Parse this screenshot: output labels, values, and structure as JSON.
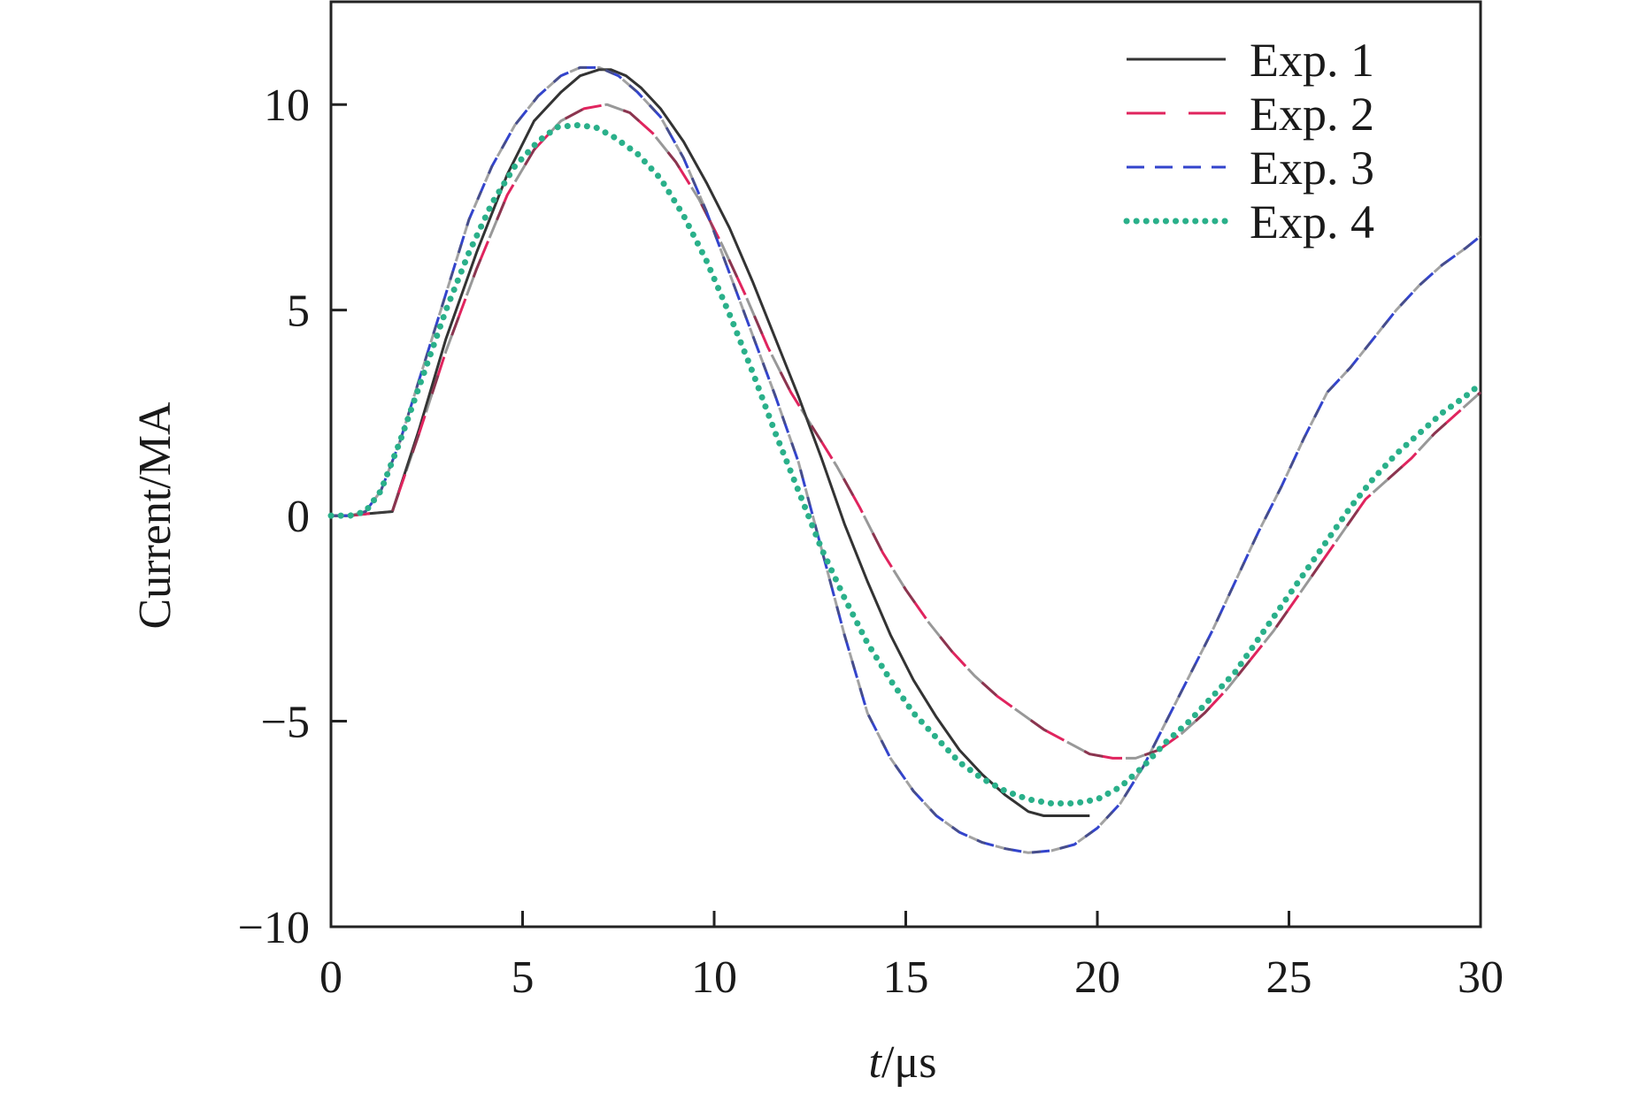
{
  "chart_data": {
    "type": "line",
    "title": "",
    "xlabel_italic": "t",
    "xlabel_unit": "/μs",
    "ylabel": "Current/MA",
    "xlim": [
      0,
      30
    ],
    "ylim": [
      -10,
      12.5
    ],
    "xticks": [
      0,
      5,
      10,
      15,
      20,
      25,
      30
    ],
    "yticks": [
      -10,
      -5,
      0,
      5,
      10
    ],
    "xtick_labels": [
      "0",
      "5",
      "10",
      "15",
      "20",
      "25",
      "30"
    ],
    "ytick_labels": [
      "−10",
      "−5",
      "0",
      "5",
      "10"
    ],
    "grid": false,
    "legend_position": "top-right",
    "series": [
      {
        "name": "Exp. 1",
        "style": "solid",
        "colors": [
          "#333333"
        ],
        "x": [
          0,
          0.5,
          1.0,
          1.6,
          2.3,
          3.0,
          3.8,
          4.6,
          5.3,
          6.0,
          6.5,
          7.0,
          7.3,
          7.7,
          8.1,
          8.6,
          9.2,
          9.8,
          10.4,
          11.0,
          11.6,
          12.2,
          12.8,
          13.4,
          14.0,
          14.6,
          15.2,
          15.8,
          16.4,
          17.0,
          17.6,
          18.2,
          18.6,
          19.0,
          19.4,
          19.8
        ],
        "y": [
          0,
          0,
          0.05,
          0.1,
          2.1,
          4.3,
          6.4,
          8.3,
          9.6,
          10.3,
          10.7,
          10.85,
          10.85,
          10.7,
          10.4,
          9.9,
          9.1,
          8.1,
          7.0,
          5.7,
          4.3,
          2.9,
          1.4,
          -0.2,
          -1.6,
          -2.9,
          -4.0,
          -4.9,
          -5.7,
          -6.3,
          -6.8,
          -7.2,
          -7.3,
          -7.3,
          -7.3,
          -7.3
        ]
      },
      {
        "name": "Exp. 2",
        "style": "longdash",
        "colors": [
          "#e0245e",
          "#444444"
        ],
        "x": [
          0,
          0.5,
          1.0,
          1.6,
          2.3,
          3.0,
          3.8,
          4.6,
          5.3,
          6.0,
          6.6,
          7.2,
          7.8,
          8.4,
          9.0,
          9.6,
          10.2,
          10.8,
          11.4,
          12.0,
          12.6,
          13.2,
          13.8,
          14.4,
          15.0,
          15.6,
          16.2,
          16.8,
          17.4,
          18.0,
          18.6,
          19.2,
          19.8,
          20.4,
          21.0,
          21.6,
          22.2,
          22.8,
          23.4,
          24.0,
          24.6,
          25.2,
          25.8,
          26.4,
          27.0,
          27.6,
          28.2,
          28.8,
          29.4,
          30.0
        ],
        "y": [
          0,
          0,
          0.05,
          0.1,
          2.0,
          4.0,
          6.0,
          7.8,
          8.9,
          9.6,
          9.9,
          10.0,
          9.8,
          9.3,
          8.6,
          7.7,
          6.6,
          5.4,
          4.1,
          3.0,
          2.1,
          1.2,
          0.2,
          -0.9,
          -1.8,
          -2.6,
          -3.3,
          -3.9,
          -4.4,
          -4.8,
          -5.2,
          -5.5,
          -5.8,
          -5.9,
          -5.9,
          -5.7,
          -5.3,
          -4.8,
          -4.2,
          -3.5,
          -2.8,
          -2.0,
          -1.2,
          -0.4,
          0.4,
          0.9,
          1.4,
          2.0,
          2.5,
          3.0
        ]
      },
      {
        "name": "Exp. 3",
        "style": "shortdash",
        "colors": [
          "#3344cc",
          "#555555"
        ],
        "x": [
          0,
          0.5,
          0.9,
          1.3,
          1.8,
          2.4,
          3.0,
          3.6,
          4.2,
          4.8,
          5.4,
          6.0,
          6.5,
          7.0,
          7.5,
          8.0,
          8.6,
          9.2,
          9.8,
          10.4,
          11.0,
          11.6,
          12.2,
          12.8,
          13.4,
          14.0,
          14.6,
          15.2,
          15.8,
          16.4,
          17.0,
          17.6,
          18.2,
          18.8,
          19.4,
          20.0,
          20.6,
          21.2,
          21.8,
          22.4,
          23.0,
          23.6,
          24.2,
          24.8,
          25.4,
          26.0,
          26.6,
          27.2,
          27.8,
          28.4,
          29.0,
          29.6,
          30.0
        ],
        "y": [
          0,
          0,
          0.1,
          0.6,
          1.8,
          3.6,
          5.4,
          7.2,
          8.5,
          9.5,
          10.2,
          10.7,
          10.9,
          10.9,
          10.7,
          10.3,
          9.7,
          8.7,
          7.4,
          5.9,
          4.4,
          2.9,
          1.3,
          -0.8,
          -2.9,
          -4.8,
          -5.9,
          -6.7,
          -7.3,
          -7.7,
          -7.95,
          -8.1,
          -8.2,
          -8.15,
          -8.0,
          -7.6,
          -7.0,
          -6.1,
          -5.0,
          -3.9,
          -2.8,
          -1.6,
          -0.4,
          0.7,
          1.9,
          3.0,
          3.6,
          4.3,
          5.0,
          5.6,
          6.1,
          6.5,
          6.8
        ]
      },
      {
        "name": "Exp. 4",
        "style": "dotted",
        "colors": [
          "#2ab08a"
        ],
        "x": [
          0,
          0.5,
          0.9,
          1.3,
          1.8,
          2.4,
          3.0,
          3.6,
          4.2,
          4.8,
          5.4,
          5.9,
          6.4,
          6.9,
          7.4,
          8.0,
          8.6,
          9.2,
          9.8,
          10.4,
          11.0,
          11.6,
          12.2,
          12.8,
          13.4,
          14.0,
          14.6,
          15.2,
          15.8,
          16.4,
          17.0,
          17.6,
          18.2,
          18.8,
          19.4,
          20.0,
          20.6,
          21.2,
          21.8,
          22.4,
          23.0,
          23.6,
          24.2,
          24.8,
          25.4,
          26.0,
          26.6,
          27.2,
          27.8,
          28.4,
          29.0,
          29.6,
          30.0
        ],
        "y": [
          0,
          0,
          0.1,
          0.6,
          1.8,
          3.4,
          5.0,
          6.4,
          7.6,
          8.5,
          9.1,
          9.45,
          9.5,
          9.45,
          9.2,
          8.8,
          8.2,
          7.3,
          6.2,
          4.9,
          3.5,
          2.0,
          0.6,
          -0.8,
          -2.0,
          -3.1,
          -4.0,
          -4.8,
          -5.4,
          -6.0,
          -6.4,
          -6.7,
          -6.9,
          -7.0,
          -7.0,
          -6.9,
          -6.6,
          -6.1,
          -5.5,
          -5.0,
          -4.4,
          -3.8,
          -3.0,
          -2.2,
          -1.4,
          -0.6,
          0.2,
          0.9,
          1.5,
          2.0,
          2.5,
          2.9,
          3.2
        ]
      }
    ]
  }
}
